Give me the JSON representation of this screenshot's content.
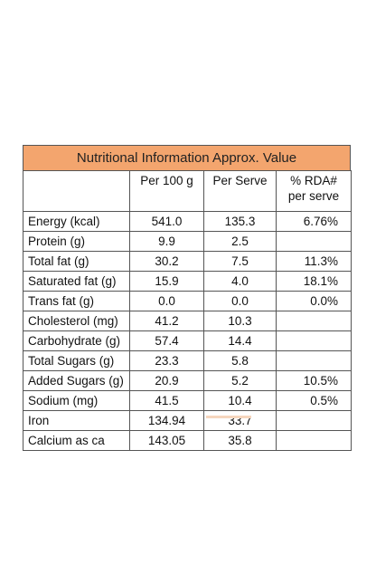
{
  "title": "Nutritional Information Approx. Value",
  "colors": {
    "title_background": "#f3a56e",
    "border": "#555555"
  },
  "columns": {
    "nutrient": "",
    "per_100g": "Per 100 g",
    "per_serve": "Per Serve",
    "rda_line1": "% RDA#",
    "rda_line2": "per serve"
  },
  "rows": [
    {
      "name": "Energy (kcal)",
      "per_100g": "541.0",
      "per_serve": "135.3",
      "rda": "6.76%"
    },
    {
      "name": "Protein (g)",
      "per_100g": "9.9",
      "per_serve": "2.5",
      "rda": ""
    },
    {
      "name": "Total fat (g)",
      "per_100g": "30.2",
      "per_serve": "7.5",
      "rda": "11.3%"
    },
    {
      "name": "Saturated fat (g)",
      "per_100g": "15.9",
      "per_serve": "4.0",
      "rda": "18.1%"
    },
    {
      "name": "Trans fat (g)",
      "per_100g": "0.0",
      "per_serve": "0.0",
      "rda": "0.0%"
    },
    {
      "name": "Cholesterol (mg)",
      "per_100g": "41.2",
      "per_serve": "10.3",
      "rda": ""
    },
    {
      "name": "Carbohydrate (g)",
      "per_100g": "57.4",
      "per_serve": "14.4",
      "rda": ""
    },
    {
      "name": "Total Sugars (g)",
      "per_100g": "23.3",
      "per_serve": "5.8",
      "rda": ""
    },
    {
      "name": "Added Sugars (g)",
      "per_100g": "20.9",
      "per_serve": "5.2",
      "rda": "10.5%"
    },
    {
      "name": "Sodium (mg)",
      "per_100g": "41.5",
      "per_serve": "10.4",
      "rda": "0.5%"
    },
    {
      "name": "Iron",
      "per_100g": "134.94",
      "per_serve": "33.7",
      "rda": ""
    },
    {
      "name": "Calcium as ca",
      "per_100g": "143.05",
      "per_serve": "35.8",
      "rda": ""
    }
  ]
}
